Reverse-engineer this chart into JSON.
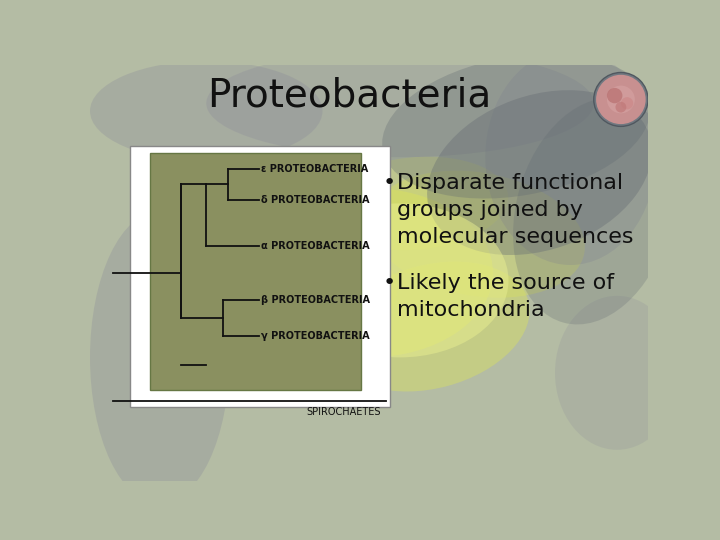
{
  "title": "Proteobacteria",
  "title_fontsize": 28,
  "title_color": "#111111",
  "slide_bg": "#b8c0a0",
  "tree_box_color": "#8a9060",
  "bullet_points": [
    "Disparate functional\ngroups joined by\nmolecular sequences",
    "Likely the source of\nmitochondria"
  ],
  "bullet_fontsize": 16,
  "bullet_color": "#111111",
  "tree_labels": [
    "ε PROTEOBACTERIA",
    "δ PROTEOBACTERIA",
    "α PROTEOBACTERIA",
    "β PROTEOBACTERIA",
    "γ PROTEOBACTERIA"
  ],
  "spirochaetes_label": "SPIROCHAETES",
  "tree_label_fontsize": 7,
  "tree_line_color": "#111111",
  "bg_base": "#b4bca4",
  "bg_yellow_areas": [
    [
      360,
      270,
      320,
      220,
      0,
      0.55
    ],
    [
      440,
      200,
      260,
      160,
      15,
      0.45
    ],
    [
      500,
      320,
      280,
      160,
      -10,
      0.4
    ],
    [
      300,
      230,
      200,
      130,
      20,
      0.35
    ],
    [
      420,
      360,
      240,
      120,
      5,
      0.3
    ]
  ],
  "bg_gray_areas": [
    [
      90,
      160,
      180,
      380,
      0.3
    ],
    [
      620,
      420,
      220,
      280,
      0.25
    ],
    [
      400,
      490,
      500,
      140,
      0.28
    ],
    [
      150,
      480,
      300,
      130,
      0.3
    ],
    [
      680,
      140,
      160,
      200,
      0.2
    ]
  ]
}
